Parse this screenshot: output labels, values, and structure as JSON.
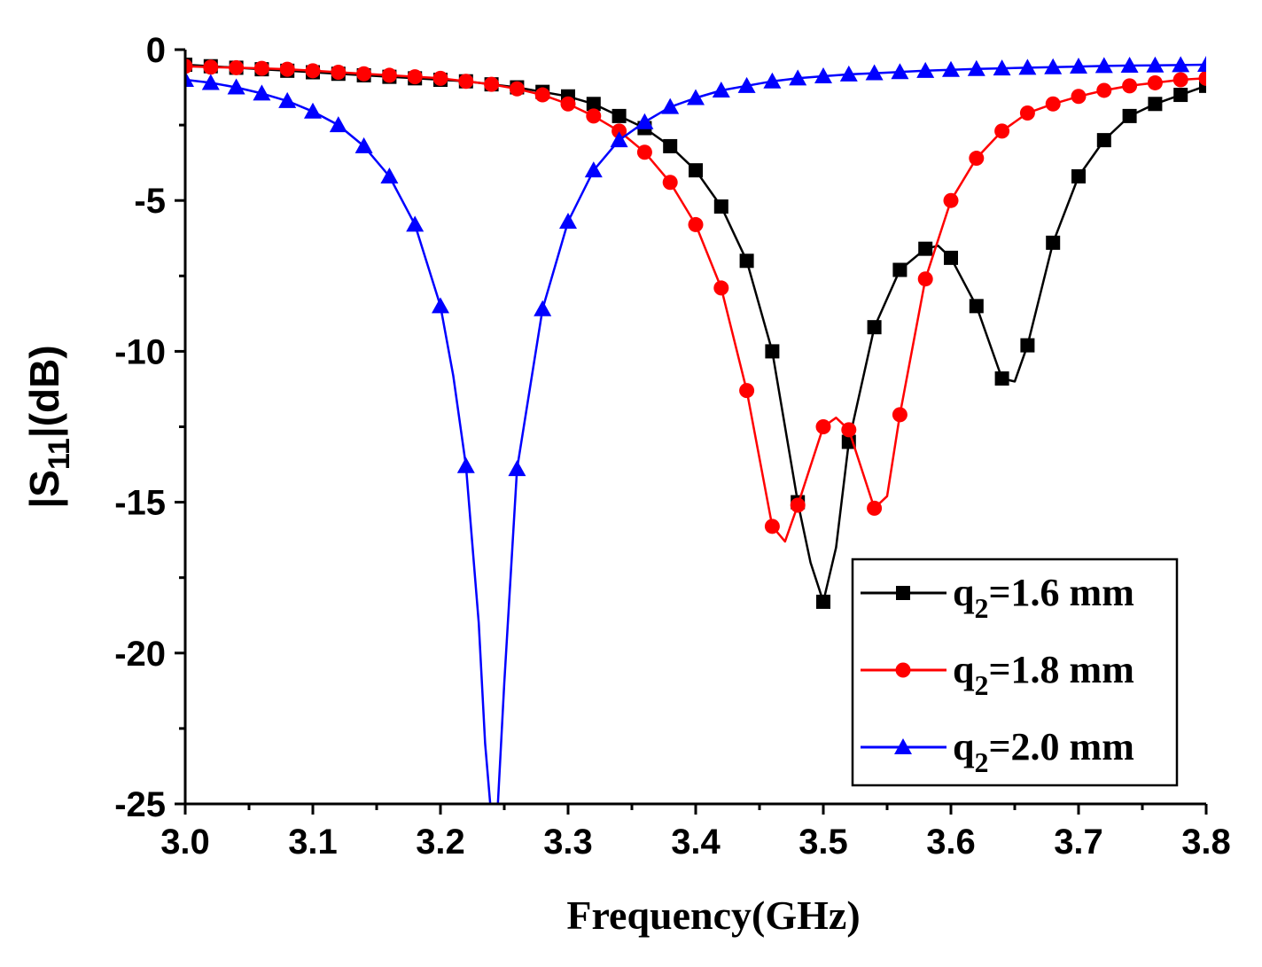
{
  "chart_data": {
    "type": "line",
    "title": "",
    "xlabel": "Frequency(GHz)",
    "ylabel": {
      "prefix": "|S",
      "subscript": "11",
      "suffix": "|(dB)"
    },
    "xlim": [
      3.0,
      3.8
    ],
    "ylim": [
      -25,
      0
    ],
    "xticks": [
      3.0,
      3.1,
      3.2,
      3.3,
      3.4,
      3.5,
      3.6,
      3.7,
      3.8
    ],
    "xtick_labels": [
      "3.0",
      "3.1",
      "3.2",
      "3.3",
      "3.4",
      "3.5",
      "3.6",
      "3.7",
      "3.8"
    ],
    "yticks": [
      0,
      -5,
      -10,
      -15,
      -20,
      -25
    ],
    "ytick_labels": [
      "0",
      "-5",
      "-10",
      "-15",
      "-20",
      "-25"
    ],
    "grid": false,
    "legend_position": "bottom-right",
    "series": [
      {
        "name": "q2=1.6 mm",
        "label_prefix": "q",
        "label_sub": "2",
        "label_suffix": "=1.6 mm",
        "color": "#000000",
        "marker": "square",
        "line_x": [
          3.0,
          3.02,
          3.04,
          3.06,
          3.08,
          3.1,
          3.12,
          3.14,
          3.16,
          3.18,
          3.2,
          3.22,
          3.24,
          3.26,
          3.28,
          3.3,
          3.32,
          3.34,
          3.36,
          3.38,
          3.4,
          3.42,
          3.44,
          3.46,
          3.47,
          3.48,
          3.49,
          3.5,
          3.51,
          3.52,
          3.54,
          3.56,
          3.58,
          3.59,
          3.6,
          3.62,
          3.64,
          3.65,
          3.66,
          3.68,
          3.7,
          3.72,
          3.74,
          3.76,
          3.78,
          3.8
        ],
        "line_y": [
          -0.5,
          -0.55,
          -0.6,
          -0.65,
          -0.7,
          -0.75,
          -0.8,
          -0.85,
          -0.9,
          -0.95,
          -1.0,
          -1.05,
          -1.15,
          -1.25,
          -1.4,
          -1.55,
          -1.8,
          -2.2,
          -2.6,
          -3.2,
          -4.0,
          -5.2,
          -7.0,
          -10.0,
          -12.5,
          -15.0,
          -17.0,
          -18.3,
          -16.5,
          -13.0,
          -9.2,
          -7.3,
          -6.6,
          -6.5,
          -6.9,
          -8.5,
          -10.9,
          -11.0,
          -9.8,
          -6.4,
          -4.2,
          -3.0,
          -2.2,
          -1.8,
          -1.5,
          -1.2
        ],
        "marker_x": [
          3.0,
          3.02,
          3.04,
          3.06,
          3.08,
          3.1,
          3.12,
          3.14,
          3.16,
          3.18,
          3.2,
          3.22,
          3.24,
          3.26,
          3.28,
          3.3,
          3.32,
          3.34,
          3.36,
          3.38,
          3.4,
          3.42,
          3.44,
          3.46,
          3.48,
          3.5,
          3.52,
          3.54,
          3.56,
          3.58,
          3.6,
          3.62,
          3.64,
          3.66,
          3.68,
          3.7,
          3.72,
          3.74,
          3.76,
          3.78,
          3.8
        ],
        "marker_y": [
          -0.5,
          -0.55,
          -0.6,
          -0.65,
          -0.7,
          -0.75,
          -0.8,
          -0.85,
          -0.9,
          -0.95,
          -1.0,
          -1.05,
          -1.15,
          -1.25,
          -1.4,
          -1.55,
          -1.8,
          -2.2,
          -2.6,
          -3.2,
          -4.0,
          -5.2,
          -7.0,
          -10.0,
          -15.0,
          -18.3,
          -13.0,
          -9.2,
          -7.3,
          -6.6,
          -6.9,
          -8.5,
          -10.9,
          -9.8,
          -6.4,
          -4.2,
          -3.0,
          -2.2,
          -1.8,
          -1.5,
          -1.2
        ]
      },
      {
        "name": "q2=1.8 mm",
        "label_prefix": "q",
        "label_sub": "2",
        "label_suffix": "=1.8 mm",
        "color": "#ff0000",
        "marker": "circle",
        "line_x": [
          3.0,
          3.02,
          3.04,
          3.06,
          3.08,
          3.1,
          3.12,
          3.14,
          3.16,
          3.18,
          3.2,
          3.22,
          3.24,
          3.26,
          3.28,
          3.3,
          3.32,
          3.34,
          3.36,
          3.38,
          3.4,
          3.42,
          3.44,
          3.46,
          3.47,
          3.48,
          3.5,
          3.51,
          3.52,
          3.54,
          3.55,
          3.56,
          3.58,
          3.6,
          3.62,
          3.64,
          3.66,
          3.68,
          3.7,
          3.72,
          3.74,
          3.76,
          3.78,
          3.8
        ],
        "line_y": [
          -0.55,
          -0.58,
          -0.6,
          -0.62,
          -0.65,
          -0.7,
          -0.75,
          -0.8,
          -0.85,
          -0.9,
          -0.95,
          -1.05,
          -1.15,
          -1.3,
          -1.5,
          -1.8,
          -2.2,
          -2.7,
          -3.4,
          -4.4,
          -5.8,
          -7.9,
          -11.3,
          -15.8,
          -16.3,
          -15.1,
          -12.5,
          -12.2,
          -12.6,
          -15.2,
          -14.8,
          -12.1,
          -7.6,
          -5.0,
          -3.6,
          -2.7,
          -2.1,
          -1.8,
          -1.55,
          -1.35,
          -1.2,
          -1.1,
          -1.0,
          -0.95
        ],
        "marker_x": [
          3.0,
          3.02,
          3.04,
          3.06,
          3.08,
          3.1,
          3.12,
          3.14,
          3.16,
          3.18,
          3.2,
          3.22,
          3.24,
          3.26,
          3.28,
          3.3,
          3.32,
          3.34,
          3.36,
          3.38,
          3.4,
          3.42,
          3.44,
          3.46,
          3.48,
          3.5,
          3.52,
          3.54,
          3.56,
          3.58,
          3.6,
          3.62,
          3.64,
          3.66,
          3.68,
          3.7,
          3.72,
          3.74,
          3.76,
          3.78,
          3.8
        ],
        "marker_y": [
          -0.55,
          -0.58,
          -0.6,
          -0.62,
          -0.65,
          -0.7,
          -0.75,
          -0.8,
          -0.85,
          -0.9,
          -0.95,
          -1.05,
          -1.15,
          -1.3,
          -1.5,
          -1.8,
          -2.2,
          -2.7,
          -3.4,
          -4.4,
          -5.8,
          -7.9,
          -11.3,
          -15.8,
          -15.1,
          -12.5,
          -12.6,
          -15.2,
          -12.1,
          -7.6,
          -5.0,
          -3.6,
          -2.7,
          -2.1,
          -1.8,
          -1.55,
          -1.35,
          -1.2,
          -1.1,
          -1.0,
          -0.95
        ]
      },
      {
        "name": "q2=2.0 mm",
        "label_prefix": "q",
        "label_sub": "2",
        "label_suffix": "=2.0 mm",
        "color": "#0000ff",
        "marker": "triangle",
        "line_x": [
          3.0,
          3.02,
          3.04,
          3.06,
          3.08,
          3.1,
          3.12,
          3.14,
          3.16,
          3.18,
          3.2,
          3.21,
          3.22,
          3.23,
          3.235,
          3.24,
          3.245,
          3.25,
          3.26,
          3.28,
          3.3,
          3.32,
          3.34,
          3.36,
          3.38,
          3.4,
          3.42,
          3.44,
          3.46,
          3.48,
          3.5,
          3.52,
          3.54,
          3.56,
          3.58,
          3.6,
          3.62,
          3.64,
          3.66,
          3.68,
          3.7,
          3.72,
          3.74,
          3.76,
          3.78,
          3.8
        ],
        "line_y": [
          -1.0,
          -1.1,
          -1.25,
          -1.45,
          -1.7,
          -2.05,
          -2.5,
          -3.2,
          -4.2,
          -5.8,
          -8.5,
          -10.8,
          -13.8,
          -19.0,
          -23.0,
          -25.5,
          -25.0,
          -21.0,
          -13.9,
          -8.6,
          -5.7,
          -4.0,
          -3.0,
          -2.4,
          -1.9,
          -1.6,
          -1.35,
          -1.2,
          -1.05,
          -0.95,
          -0.88,
          -0.82,
          -0.78,
          -0.74,
          -0.7,
          -0.67,
          -0.64,
          -0.62,
          -0.6,
          -0.58,
          -0.56,
          -0.54,
          -0.53,
          -0.52,
          -0.51,
          -0.5
        ],
        "marker_x": [
          3.0,
          3.02,
          3.04,
          3.06,
          3.08,
          3.1,
          3.12,
          3.14,
          3.16,
          3.18,
          3.2,
          3.22,
          3.26,
          3.28,
          3.3,
          3.32,
          3.34,
          3.36,
          3.38,
          3.4,
          3.42,
          3.44,
          3.46,
          3.48,
          3.5,
          3.52,
          3.54,
          3.56,
          3.58,
          3.6,
          3.62,
          3.64,
          3.66,
          3.68,
          3.7,
          3.72,
          3.74,
          3.76,
          3.78,
          3.8
        ],
        "marker_y": [
          -1.0,
          -1.1,
          -1.25,
          -1.45,
          -1.7,
          -2.05,
          -2.5,
          -3.2,
          -4.2,
          -5.8,
          -8.5,
          -13.8,
          -13.9,
          -8.6,
          -5.7,
          -4.0,
          -3.0,
          -2.4,
          -1.9,
          -1.6,
          -1.35,
          -1.2,
          -1.05,
          -0.95,
          -0.88,
          -0.82,
          -0.78,
          -0.74,
          -0.7,
          -0.67,
          -0.64,
          -0.62,
          -0.6,
          -0.58,
          -0.56,
          -0.54,
          -0.53,
          -0.52,
          -0.51,
          -0.5
        ]
      }
    ]
  }
}
